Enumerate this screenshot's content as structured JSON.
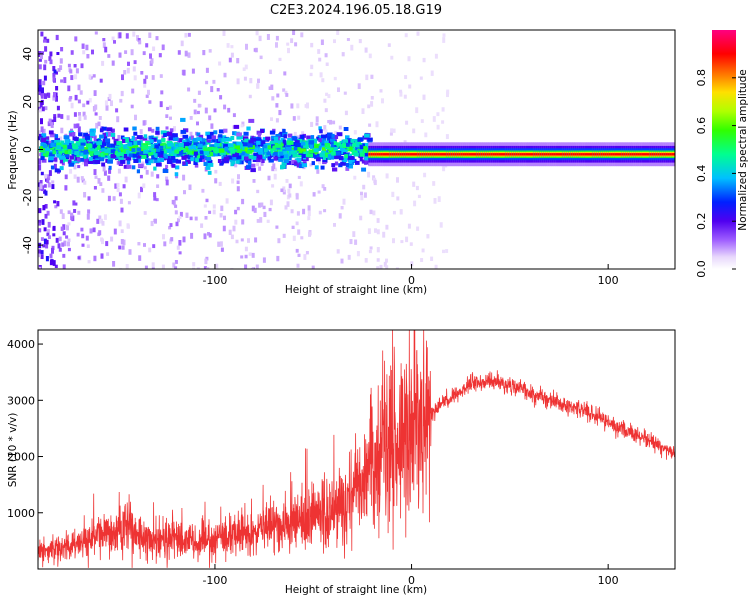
{
  "title": "C2E3.2024.196.05.18.G19",
  "colors": {
    "snr_line": "#ee3333",
    "colormap": [
      "#ffffff",
      "#d8b8f8",
      "#a060ff",
      "#7000e0",
      "#3000ff",
      "#0040ff",
      "#00d0ff",
      "#00ff80",
      "#40ff00",
      "#e0ff00",
      "#ff8000",
      "#ff0000",
      "#ff0080"
    ]
  },
  "chart_data": [
    {
      "type": "heatmap",
      "xlabel": "Height of straight line (km)",
      "ylabel": "Frequency (Hz)",
      "xlim": [
        -190,
        134
      ],
      "ylim": [
        -50,
        50
      ],
      "xticks": [
        -100,
        0,
        100
      ],
      "xtick_labels": [
        "-100",
        "0",
        "100"
      ],
      "yticks": [
        -40,
        -20,
        0,
        20,
        40
      ],
      "ytick_labels": [
        "-40",
        "-20",
        "0",
        "20",
        "40"
      ],
      "colorbar": {
        "label": "Normalized spectral amplitude",
        "range": [
          0,
          1
        ],
        "ticks": [
          0.0,
          0.2,
          0.4,
          0.6,
          0.8
        ],
        "tick_labels": [
          "0.0",
          "0.2",
          "0.4",
          "0.6",
          "0.8"
        ]
      },
      "band": {
        "center_hz": -2,
        "halfwidth_hz": 1.5,
        "x_start": -22,
        "x_end": 134,
        "peak_amplitude": 0.95
      },
      "noisy_region": {
        "x_start": -190,
        "x_end": -22,
        "center_hz": 0,
        "spread_hz": 6,
        "peak_amplitude": 0.55
      }
    },
    {
      "type": "line",
      "xlabel": "Height of straight line (km)",
      "ylabel": "SNR (10 * v/v)",
      "xlim": [
        -190,
        134
      ],
      "ylim": [
        0,
        4250
      ],
      "xticks": [
        -100,
        0,
        100
      ],
      "xtick_labels": [
        "-100",
        "0",
        "100"
      ],
      "yticks": [
        1000,
        2000,
        3000,
        4000
      ],
      "ytick_labels": [
        "1000",
        "2000",
        "3000",
        "4000"
      ],
      "series": [
        {
          "x": [
            -190,
            -180,
            -170,
            -160,
            -150,
            -145,
            -140,
            -130,
            -120,
            -110,
            -100,
            -90,
            -80,
            -70,
            -60,
            -50,
            -40,
            -30,
            -25,
            -20,
            -15,
            -10,
            -5,
            0,
            5,
            8,
            10,
            20,
            30,
            40,
            50,
            60,
            70,
            80,
            90,
            100,
            110,
            120,
            134
          ],
          "y": [
            300,
            350,
            450,
            550,
            650,
            800,
            550,
            500,
            550,
            450,
            500,
            600,
            700,
            750,
            800,
            900,
            1000,
            1200,
            1600,
            2000,
            2000,
            2200,
            2300,
            2400,
            2600,
            2700,
            2800,
            3050,
            3300,
            3350,
            3250,
            3150,
            3000,
            2900,
            2800,
            2600,
            2450,
            2300,
            2050
          ]
        }
      ]
    }
  ]
}
